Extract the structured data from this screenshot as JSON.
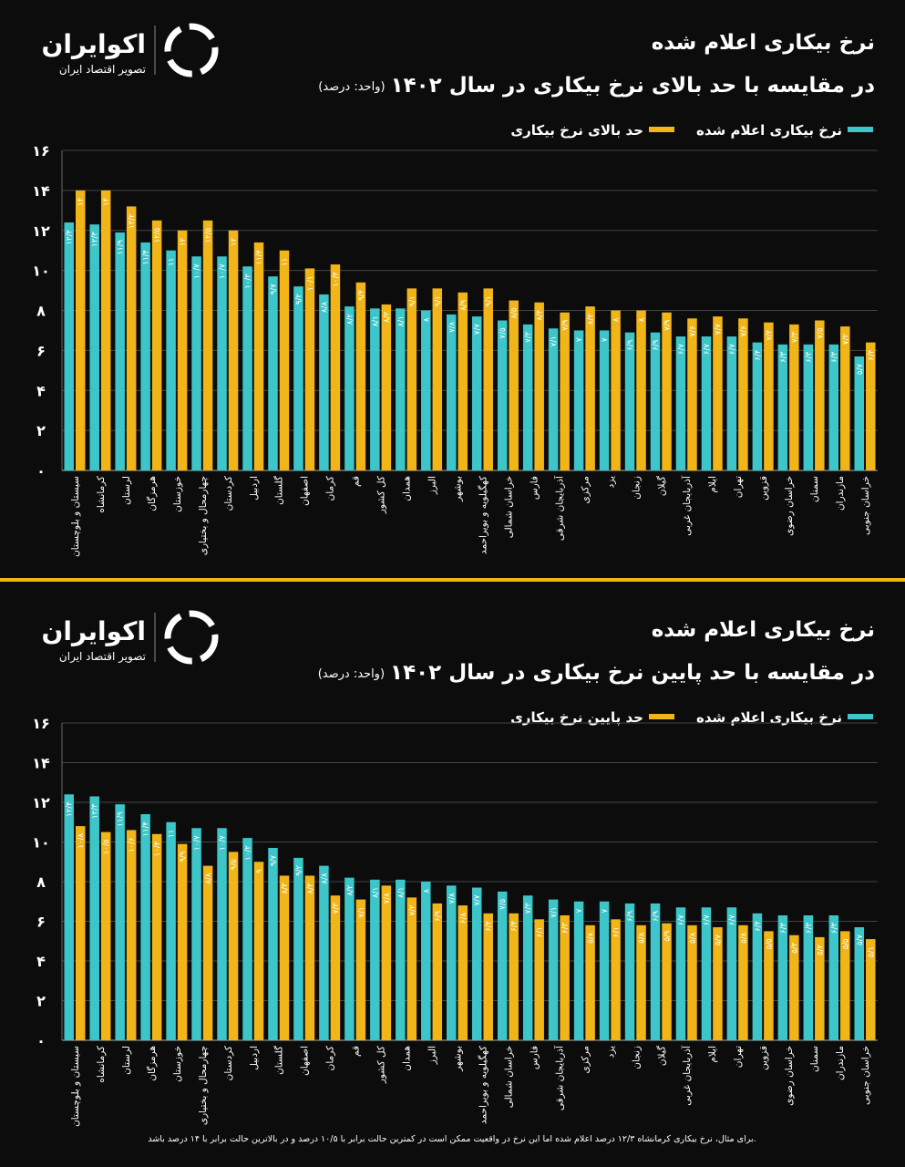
{
  "brand": {
    "name": "اکوایران",
    "tagline": "تصویر اقتصاد ایران"
  },
  "footnote": "برای مثال، نرخ بیکاری کرمانشاه ۱۲/۳ درصد اعلام شده اما این نرخ در واقعیت ممکن است در کمترین حالت برابر با ۱۰/۵ درصد و در بالاترین حالت برابر با ۱۴ درصد باشد.",
  "chart_data": [
    {
      "type": "bar",
      "title": "نرخ بیکاری اعلام شده",
      "subtitle": "در مقایسه با حد بالای نرخ بیکاری در سال ۱۴۰۲",
      "unit": "(واحد: درصد)",
      "categories": [
        "سیستان و بلوچستان",
        "کرمانشاه",
        "لرستان",
        "هرمزگان",
        "خوزستان",
        "چهارمحال و بختیاری",
        "کردستان",
        "اردبیل",
        "گلستان",
        "اصفهان",
        "کرمان",
        "قم",
        "کل کشور",
        "همدان",
        "البرز",
        "بوشهر",
        "کهگیلویه و بویراحمد",
        "خراسان شمالی",
        "فارس",
        "آذربایجان شرقی",
        "مرکزی",
        "یزد",
        "زنجان",
        "گیلان",
        "آذربایجان غربی",
        "ایلام",
        "تهران",
        "قزوین",
        "خراسان رضوی",
        "سمنان",
        "مازندران",
        "خراسان جنوبی"
      ],
      "series": [
        {
          "name": "نرخ بیکاری اعلام شده",
          "color": "#3cc6c9",
          "values": [
            12.4,
            12.3,
            11.9,
            11.4,
            11,
            10.7,
            10.7,
            10.2,
            9.7,
            9.2,
            8.8,
            8.2,
            8.1,
            8.1,
            8,
            7.8,
            7.7,
            7.5,
            7.3,
            7.1,
            7,
            7,
            6.9,
            6.9,
            6.7,
            6.7,
            6.7,
            6.4,
            6.3,
            6.3,
            6.3,
            5.7
          ],
          "value_labels": [
            "۱۲/۴",
            "۱۲/۳",
            "۱۱/۹",
            "۱۱/۴",
            "۱۱",
            "۱۰/۷",
            "۱۰/۷",
            "۱۰/۲",
            "۹/۷",
            "۹/۲",
            "۸/۸",
            "۸/۲",
            "۸/۱",
            "۸/۱",
            "۸",
            "۷/۸",
            "۷/۷",
            "۷/۵",
            "۷/۳",
            "۷/۱",
            "۷",
            "۷",
            "۶/۹",
            "۶/۹",
            "۶/۷",
            "۶/۷",
            "۶/۷",
            "۶/۴",
            "۶/۳",
            "۶/۳",
            "۶/۳",
            "۵/۷"
          ]
        },
        {
          "name": "حد بالای نرخ بیکاری",
          "color": "#f2b517",
          "values": [
            14,
            14,
            13.2,
            12.5,
            12,
            12.5,
            12,
            11.4,
            11,
            10.1,
            10.3,
            9.4,
            8.3,
            9.1,
            9.1,
            8.9,
            9.1,
            8.5,
            8.4,
            7.9,
            8.2,
            8,
            8,
            7.9,
            7.6,
            7.7,
            7.6,
            7.4,
            7.3,
            7.5,
            7.2,
            6.4
          ],
          "value_labels": [
            "۱۴",
            "۱۴",
            "۱۳/۲",
            "۱۲/۵",
            "۱۲",
            "۱۲/۵",
            "۱۲",
            "۱۱/۴",
            "۱۱",
            "۱۰/۱",
            "۱۰/۳",
            "۹/۴",
            "۸/۳",
            "۹/۱",
            "۹/۱",
            "۸/۹",
            "۹/۱",
            "۸/۵",
            "۸/۴",
            "۷/۹",
            "۸/۲",
            "۸",
            "۸",
            "۷/۹",
            "۷/۶",
            "۷/۷",
            "۷/۶",
            "۷/۴",
            "۷/۳",
            "۷/۵",
            "۷/۲",
            "۶/۴"
          ]
        }
      ],
      "ylim": [
        0,
        16
      ],
      "yticks": [
        {
          "value": 0,
          "label": "۰"
        },
        {
          "value": 2,
          "label": "۲"
        },
        {
          "value": 4,
          "label": "۴"
        },
        {
          "value": 6,
          "label": "۶"
        },
        {
          "value": 8,
          "label": "۸"
        },
        {
          "value": 10,
          "label": "۱۰"
        },
        {
          "value": 12,
          "label": "۱۲"
        },
        {
          "value": 14,
          "label": "۱۴"
        },
        {
          "value": 16,
          "label": "۱۶"
        }
      ],
      "grid": true
    },
    {
      "type": "bar",
      "title": "نرخ بیکاری اعلام شده",
      "subtitle": "در مقایسه با حد پایین نرخ بیکاری در سال ۱۴۰۲",
      "unit": "(واحد: درصد)",
      "categories": [
        "سیستان و بلوچستان",
        "کرمانشاه",
        "لرستان",
        "هرمزگان",
        "خوزستان",
        "چهارمحال و بختیاری",
        "کردستان",
        "اردبیل",
        "گلستان",
        "اصفهان",
        "کرمان",
        "قم",
        "کل کشور",
        "همدان",
        "البرز",
        "بوشهر",
        "کهگیلویه و بویراحمد",
        "خراسان شمالی",
        "فارس",
        "آذربایجان شرقی",
        "مرکزی",
        "یزد",
        "زنجان",
        "گیلان",
        "آذربایجان غربی",
        "ایلام",
        "تهران",
        "قزوین",
        "خراسان رضوی",
        "سمنان",
        "مازندران",
        "خراسان جنوبی"
      ],
      "series": [
        {
          "name": "نرخ بیکاری اعلام شده",
          "color": "#3cc6c9",
          "values": [
            12.4,
            12.3,
            11.9,
            11.4,
            11,
            10.7,
            10.7,
            10.2,
            9.7,
            9.2,
            8.8,
            8.2,
            8.1,
            8.1,
            8,
            7.8,
            7.7,
            7.5,
            7.3,
            7.1,
            7,
            7,
            6.9,
            6.9,
            6.7,
            6.7,
            6.7,
            6.4,
            6.3,
            6.3,
            6.3,
            5.7
          ],
          "value_labels": [
            "۱۲/۴",
            "۱۲/۳",
            "۱۱/۹",
            "۱۱/۴",
            "۱۱",
            "۱۰/۷",
            "۱۰/۷",
            "۱۰/۲",
            "۹/۷",
            "۹/۲",
            "۸/۸",
            "۸/۲",
            "۸/۱",
            "۸/۱",
            "۸",
            "۷/۸",
            "۷/۷",
            "۷/۵",
            "۷/۳",
            "۷/۱",
            "۷",
            "۷",
            "۶/۹",
            "۶/۹",
            "۶/۷",
            "۶/۷",
            "۶/۷",
            "۶/۴",
            "۶/۳",
            "۶/۳",
            "۶/۳",
            "۵/۷"
          ]
        },
        {
          "name": "حد پایین نرخ بیکاری",
          "color": "#f2b517",
          "values": [
            10.8,
            10.5,
            10.6,
            10.4,
            9.9,
            8.8,
            9.5,
            9,
            8.3,
            8.3,
            7.3,
            7.1,
            7.8,
            7.2,
            6.9,
            6.8,
            6.4,
            6.4,
            6.1,
            6.3,
            5.8,
            6.1,
            5.8,
            5.9,
            5.8,
            5.7,
            5.8,
            5.5,
            5.3,
            5.2,
            5.5,
            5.1
          ],
          "value_labels": [
            "۱۰/۸",
            "۱۰/۵",
            "۱۰/۶",
            "۱۰/۴",
            "۹/۹",
            "۸/۸",
            "۹/۵",
            "۹",
            "۸/۳",
            "۸/۳",
            "۷/۳",
            "۷/۱",
            "۷/۸",
            "۷/۲",
            "۶/۹",
            "۶/۸",
            "۶/۴",
            "۶/۴",
            "۶/۱",
            "۶/۳",
            "۵/۸",
            "۶/۱",
            "۵/۸",
            "۵/۹",
            "۵/۸",
            "۵/۷",
            "۵/۸",
            "۵/۵",
            "۵/۳",
            "۵/۲",
            "۵/۵",
            "۵/۱"
          ]
        }
      ],
      "ylim": [
        0,
        16
      ],
      "yticks": [
        {
          "value": 0,
          "label": "۰"
        },
        {
          "value": 2,
          "label": "۲"
        },
        {
          "value": 4,
          "label": "۴"
        },
        {
          "value": 6,
          "label": "۶"
        },
        {
          "value": 8,
          "label": "۸"
        },
        {
          "value": 10,
          "label": "۱۰"
        },
        {
          "value": 12,
          "label": "۱۲"
        },
        {
          "value": 14,
          "label": "۱۴"
        },
        {
          "value": 16,
          "label": "۱۶"
        }
      ],
      "grid": true
    }
  ]
}
